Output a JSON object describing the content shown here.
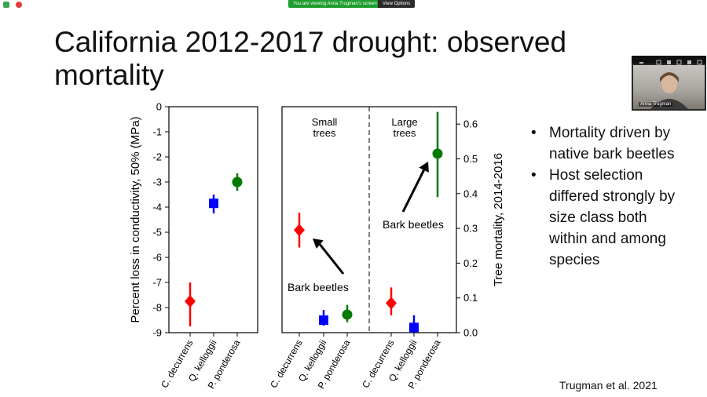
{
  "topbar": {
    "banner_text": "You are viewing Anna Trugman's screen",
    "view_options_label": "View Options"
  },
  "slide": {
    "title": "California 2012-2017 drought: observed mortality",
    "bullets": [
      "Mortality driven by native bark beetles",
      "Host selection differed strongly by size class both within and among species"
    ],
    "citation": "Trugman et al. 2021"
  },
  "video": {
    "participant_name": "Anna Trugman"
  },
  "colors": {
    "c_decurrens": "#ff0000",
    "q_kelloggii": "#0000ff",
    "p_ponderosa": "#007a00"
  },
  "chart_data": [
    {
      "type": "scatter",
      "categories": [
        "C. decurrens",
        "Q. kelloggii",
        "P. ponderosa"
      ],
      "ylabel": "Percent loss in conductivity, 50% (MPa)",
      "ylim": [
        -9,
        0
      ],
      "yticks": [
        "0",
        "-1",
        "-2",
        "-3",
        "-4",
        "-5",
        "-6",
        "-7",
        "-8",
        "-9"
      ],
      "markers": [
        "diamond",
        "square",
        "circle"
      ],
      "values": [
        -7.75,
        -3.85,
        -3.0
      ],
      "error_low": [
        -8.75,
        -4.25,
        -3.35
      ],
      "error_high": [
        -7.0,
        -3.5,
        -2.65
      ]
    },
    {
      "type": "scatter",
      "ylabel": "Tree mortality, 2014-2016",
      "ylim": [
        0,
        0.65
      ],
      "yticks": [
        "0.0",
        "0.1",
        "0.2",
        "0.3",
        "0.4",
        "0.5",
        "0.6"
      ],
      "groups": [
        {
          "label": "Small trees",
          "categories": [
            "C. decurrens",
            "Q. kelloggii",
            "P. ponderosa"
          ],
          "markers": [
            "diamond",
            "square",
            "circle"
          ],
          "values": [
            0.295,
            0.036,
            0.052
          ],
          "error_low": [
            0.245,
            0.02,
            0.03
          ],
          "error_high": [
            0.345,
            0.065,
            0.08
          ],
          "annotation": "Bark beetles"
        },
        {
          "label": "Large trees",
          "categories": [
            "C. decurrens",
            "Q. kelloggii",
            "P. ponderosa"
          ],
          "markers": [
            "diamond",
            "square",
            "circle"
          ],
          "values": [
            0.085,
            0.015,
            0.515
          ],
          "error_low": [
            0.05,
            0.0,
            0.39
          ],
          "error_high": [
            0.13,
            0.05,
            0.635
          ],
          "annotation": "Bark beetles"
        }
      ]
    }
  ]
}
